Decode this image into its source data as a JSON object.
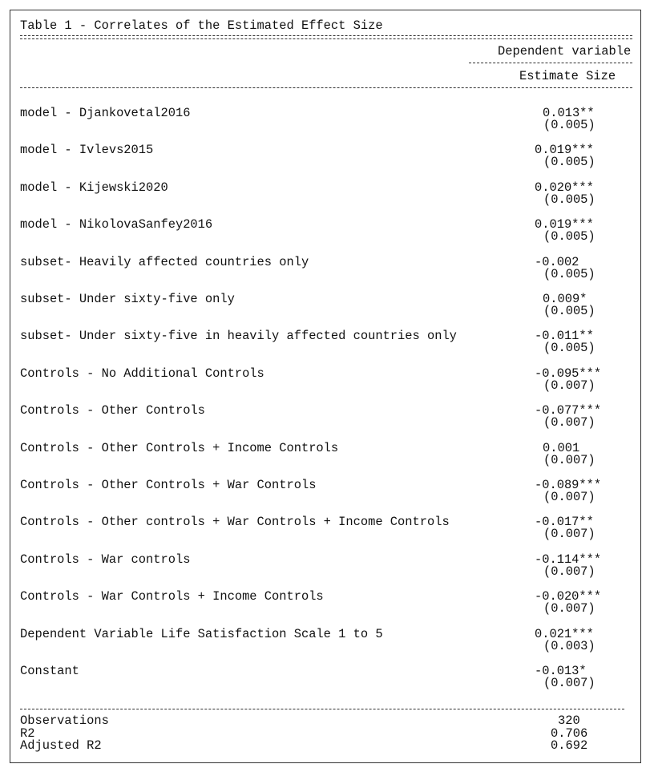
{
  "title": "Table 1 - Correlates of the Estimated Effect Size",
  "header": {
    "dependent_variable": "Dependent variable",
    "column": "Estimate Size"
  },
  "rows": [
    {
      "label": "model - Djankovetal2016",
      "estimate": "0.013**",
      "se": "(0.005)"
    },
    {
      "label": "model - Ivlevs2015",
      "estimate": "0.019***",
      "se": "(0.005)"
    },
    {
      "label": "model - Kijewski2020",
      "estimate": "0.020***",
      "se": "(0.005)"
    },
    {
      "label": "model - NikolovaSanfey2016",
      "estimate": "0.019***",
      "se": "(0.005)"
    },
    {
      "label": "subset- Heavily affected countries only",
      "estimate": "-0.002",
      "se": "(0.005)"
    },
    {
      "label": "subset- Under sixty-five only",
      "estimate": "0.009*",
      "se": "(0.005)"
    },
    {
      "label": "subset- Under sixty-five in heavily affected countries only",
      "estimate": "-0.011**",
      "se": "(0.005)"
    },
    {
      "label": "Controls - No Additional Controls",
      "estimate": "-0.095***",
      "se": "(0.007)"
    },
    {
      "label": "Controls - Other Controls",
      "estimate": "-0.077***",
      "se": "(0.007)"
    },
    {
      "label": "Controls - Other Controls + Income Controls",
      "estimate": "0.001",
      "se": "(0.007)"
    },
    {
      "label": "Controls - Other Controls + War Controls",
      "estimate": "-0.089***",
      "se": "(0.007)"
    },
    {
      "label": "Controls - Other controls + War Controls + Income Controls",
      "estimate": "-0.017**",
      "se": "(0.007)"
    },
    {
      "label": "Controls - War controls",
      "estimate": "-0.114***",
      "se": "(0.007)"
    },
    {
      "label": "Controls - War Controls + Income Controls",
      "estimate": "-0.020***",
      "se": "(0.007)"
    },
    {
      "label": "Dependent Variable Life Satisfaction Scale 1 to 5",
      "estimate": "0.021***",
      "se": "(0.003)"
    },
    {
      "label": "Constant",
      "estimate": "-0.013*",
      "se": "(0.007)"
    }
  ],
  "stats": [
    {
      "label": "Observations",
      "value": "320"
    },
    {
      "label": "R2",
      "value": "0.706"
    },
    {
      "label": "Adjusted R2",
      "value": "0.692"
    }
  ]
}
